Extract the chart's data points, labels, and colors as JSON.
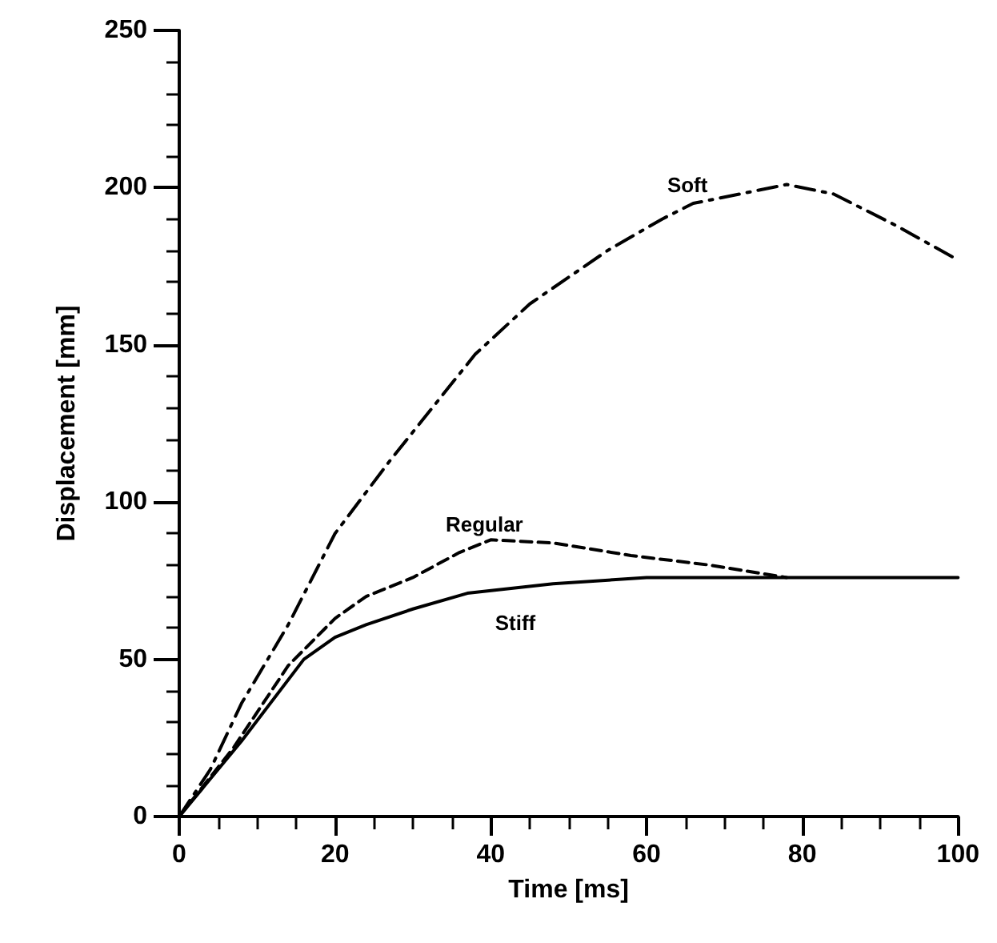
{
  "chart_data": {
    "type": "line",
    "xlabel": "Time [ms]",
    "ylabel": "Displacement [mm]",
    "xlim": [
      0,
      100
    ],
    "xticks": [
      0,
      20,
      40,
      60,
      80,
      100
    ],
    "ylim": [
      0,
      250
    ],
    "yticks": [
      0,
      50,
      100,
      150,
      200,
      250
    ],
    "grid": false,
    "legend": false,
    "marker": "none",
    "series": [
      {
        "name": "Soft",
        "color": "#000000",
        "line_style": "dashdot",
        "x": [
          0,
          4,
          8,
          14,
          20,
          27,
          38,
          45,
          55,
          62,
          66,
          72,
          78,
          84,
          92,
          100
        ],
        "values": [
          0,
          15,
          36,
          61,
          90,
          113,
          147,
          163,
          180,
          190,
          195,
          198,
          201,
          198,
          188,
          177
        ]
      },
      {
        "name": "Regular",
        "color": "#000000",
        "line_style": "dashed",
        "x": [
          0,
          7,
          14,
          20,
          24,
          30,
          36,
          40,
          48,
          58,
          68,
          78
        ],
        "values": [
          0,
          22,
          48,
          63,
          70,
          76,
          84,
          88,
          87,
          83,
          80,
          76
        ]
      },
      {
        "name": "Stiff",
        "color": "#000000",
        "line_style": "solid",
        "x": [
          0,
          8,
          16,
          20,
          24,
          30,
          37,
          48,
          60,
          100
        ],
        "values": [
          0,
          24,
          50,
          57,
          61,
          66,
          71,
          74,
          76,
          76
        ]
      }
    ]
  }
}
